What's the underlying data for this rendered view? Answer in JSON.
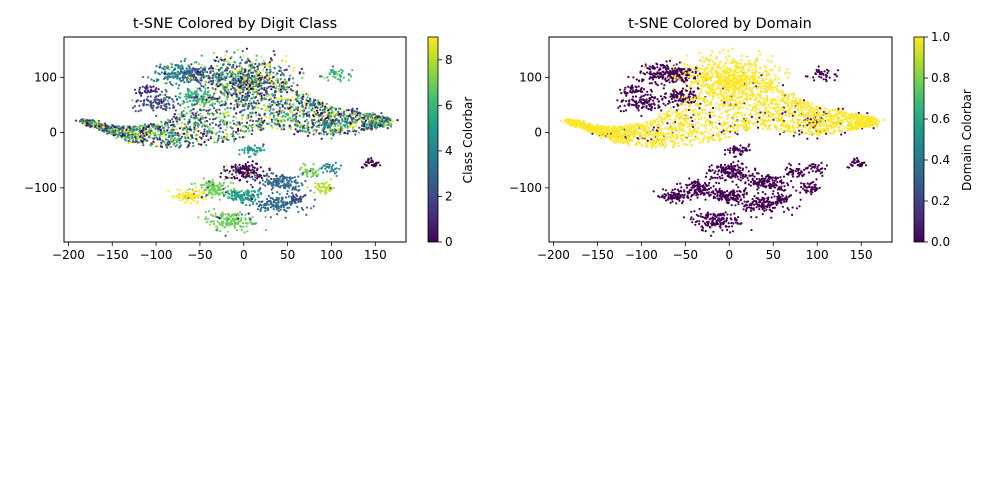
{
  "figure": {
    "background": "#ffffff"
  },
  "colormap": {
    "name": "viridis",
    "stops": [
      "#440154",
      "#482878",
      "#3e4989",
      "#31688e",
      "#26828e",
      "#1f9e89",
      "#35b779",
      "#6ece58",
      "#b5de2b",
      "#fde725"
    ]
  },
  "chart_data": [
    {
      "type": "scatter",
      "title": "t-SNE Colored by Digit Class",
      "xlabel": "",
      "ylabel": "",
      "xlim": [
        -205,
        185
      ],
      "ylim": [
        -198,
        173
      ],
      "xticks": [
        -200,
        -150,
        -100,
        -50,
        0,
        50,
        100,
        150
      ],
      "yticks": [
        -100,
        0,
        100
      ],
      "grid": false,
      "colorbar": {
        "label": "Class Colorbar",
        "range": [
          0,
          9
        ],
        "ticks": [
          "0",
          "2",
          "4",
          "6",
          "8"
        ],
        "tick_values": [
          0,
          2,
          4,
          6,
          8
        ]
      },
      "clusters": [
        {
          "x": -55,
          "y": 105,
          "sx": 12,
          "sy": 8,
          "value": 2,
          "n": 120
        },
        {
          "x": -80,
          "y": 108,
          "sx": 14,
          "sy": 9,
          "value": 4,
          "n": 120
        },
        {
          "x": -55,
          "y": 65,
          "sx": 10,
          "sy": 8,
          "value": 6,
          "n": 110
        },
        {
          "x": -100,
          "y": 55,
          "sx": 14,
          "sy": 9,
          "value": 2,
          "n": 110
        },
        {
          "x": -110,
          "y": 78,
          "sx": 7,
          "sy": 5,
          "value": 1,
          "n": 40
        },
        {
          "x": 105,
          "y": 105,
          "sx": 6,
          "sy": 5,
          "value": 6,
          "n": 40
        },
        {
          "x": 95,
          "y": 20,
          "sx": 6,
          "sy": 6,
          "value": 2,
          "n": 35
        },
        {
          "x": 145,
          "y": -55,
          "sx": 5,
          "sy": 4,
          "value": 0,
          "n": 30
        },
        {
          "x": 0,
          "y": -70,
          "sx": 12,
          "sy": 8,
          "value": 0,
          "n": 140
        },
        {
          "x": 40,
          "y": -90,
          "sx": 14,
          "sy": 8,
          "value": 3,
          "n": 140
        },
        {
          "x": 0,
          "y": -115,
          "sx": 10,
          "sy": 7,
          "value": 5,
          "n": 120
        },
        {
          "x": -35,
          "y": -100,
          "sx": 10,
          "sy": 8,
          "value": 7,
          "n": 110
        },
        {
          "x": -60,
          "y": -115,
          "sx": 9,
          "sy": 6,
          "value": 9,
          "n": 90
        },
        {
          "x": 40,
          "y": -130,
          "sx": 15,
          "sy": 8,
          "value": 3,
          "n": 140
        },
        {
          "x": -15,
          "y": -160,
          "sx": 14,
          "sy": 9,
          "value": 7,
          "n": 150
        },
        {
          "x": 75,
          "y": -70,
          "sx": 6,
          "sy": 5,
          "value": 7,
          "n": 40
        },
        {
          "x": 90,
          "y": -100,
          "sx": 6,
          "sy": 6,
          "value": 8,
          "n": 50
        },
        {
          "x": 60,
          "y": -120,
          "sx": 5,
          "sy": 5,
          "value": 2,
          "n": 30
        },
        {
          "x": 10,
          "y": -30,
          "sx": 8,
          "sy": 6,
          "value": 5,
          "n": 50
        },
        {
          "x": 100,
          "y": -65,
          "sx": 5,
          "sy": 5,
          "value": 4,
          "n": 30
        }
      ],
      "diffuse_region": {
        "spine": [
          [
            -185,
            22
          ],
          [
            -150,
            5
          ],
          [
            -120,
            -5
          ],
          [
            -80,
            0
          ],
          [
            -40,
            20
          ],
          [
            0,
            45
          ],
          [
            30,
            60
          ],
          [
            60,
            40
          ],
          [
            100,
            20
          ],
          [
            140,
            20
          ],
          [
            165,
            20
          ]
        ],
        "spine_half_width": [
          3,
          8,
          16,
          28,
          45,
          55,
          50,
          38,
          26,
          16,
          6
        ],
        "upper_lobe": {
          "x": 0,
          "y": 100,
          "sx": 28,
          "sy": 28
        },
        "n": 2600
      }
    },
    {
      "type": "scatter",
      "title": "t-SNE Colored by Domain",
      "xlabel": "",
      "ylabel": "",
      "xlim": [
        -205,
        185
      ],
      "ylim": [
        -198,
        173
      ],
      "xticks": [
        -200,
        -150,
        -100,
        -50,
        0,
        50,
        100,
        150
      ],
      "yticks": [
        -100,
        0,
        100
      ],
      "grid": false,
      "colorbar": {
        "label": "Domain Colorbar",
        "range": [
          0,
          1
        ],
        "ticks": [
          "0.0",
          "0.2",
          "0.4",
          "0.6",
          "0.8",
          "1.0"
        ],
        "tick_values": [
          0,
          0.2,
          0.4,
          0.6,
          0.8,
          1.0
        ]
      },
      "domain_colors": {
        "0": "#440154",
        "1": "#fde725"
      }
    }
  ]
}
